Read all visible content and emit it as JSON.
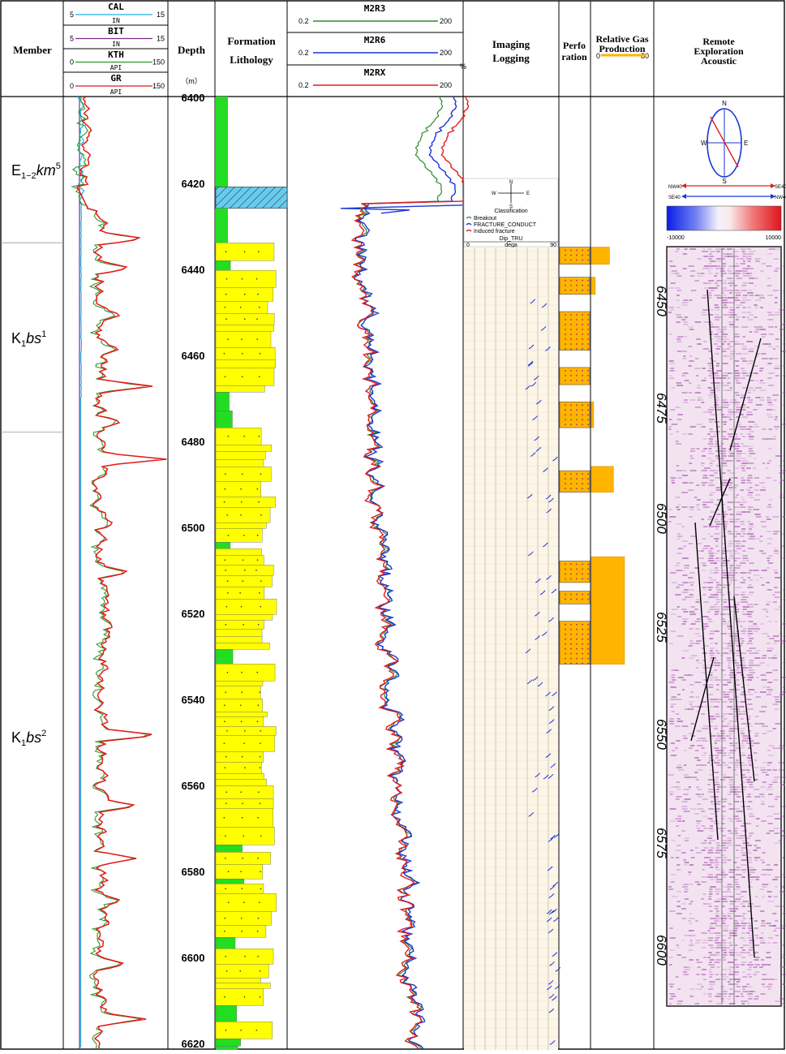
{
  "headers": {
    "member": "Member",
    "depth": "Depth",
    "depth_unit": "（m）",
    "formation_lithology_1": "Formation",
    "formation_lithology_2": "Lithology",
    "imaging_1": "Imaging",
    "imaging_2": "Logging",
    "perforation_1": "Perfo",
    "perforation_2": "ration",
    "gas_1": "Relative Gas",
    "gas_2": "Production",
    "gas_min": "0",
    "gas_max": "80",
    "remote_1": "Remote",
    "remote_2": "Exploration",
    "remote_3": "Acoustic",
    "resistivity_unit_symbol": "%"
  },
  "log_curves": [
    {
      "name": "CAL",
      "unit": "IN",
      "min": "5",
      "max": "15",
      "color": "#18b4e6"
    },
    {
      "name": "BIT",
      "unit": "IN",
      "min": "5",
      "max": "15",
      "color": "#7b2b8f"
    },
    {
      "name": "KTH",
      "unit": "API",
      "min": "0",
      "max": "150",
      "color": "#2a9a2a"
    },
    {
      "name": "GR",
      "unit": "API",
      "min": "0",
      "max": "150",
      "color": "#e41b1b"
    }
  ],
  "resistivity_curves": [
    {
      "name": "M2R3",
      "min": "0.2",
      "max": "200",
      "color": "#2a8a2a"
    },
    {
      "name": "M2R6",
      "min": "0.2",
      "max": "200",
      "color": "#1a35d6"
    },
    {
      "name": "M2RX",
      "min": "0.2",
      "max": "200",
      "color": "#e41b1b"
    }
  ],
  "members": [
    {
      "base": "E",
      "sub": "1−2",
      "ital": "km",
      "sup": "5",
      "top": 6400,
      "bottom": 6434
    },
    {
      "base": "K",
      "sub": "1",
      "ital": "bs",
      "sup": "1",
      "top": 6434,
      "bottom": 6478
    },
    {
      "base": "K",
      "sub": "1",
      "ital": "bs",
      "sup": "2",
      "top": 6478,
      "bottom": 6620
    }
  ],
  "depth_ticks": [
    "6400",
    "6420",
    "6440",
    "6460",
    "6480",
    "6500",
    "6520",
    "6540",
    "6560",
    "6580",
    "6600",
    "6620"
  ],
  "imaging_legend": {
    "compass_n": "N",
    "compass_s": "S",
    "compass_e": "E",
    "compass_w": "W",
    "classification": "Classification",
    "items": [
      {
        "label": "Breakout",
        "color": "#2a9a2a"
      },
      {
        "label": "FRACTURE_CONDUCT",
        "color": "#1a35d6"
      },
      {
        "label": "Induced fracture",
        "color": "#e41b1b"
      }
    ],
    "dip_label": "Dip_TRU",
    "dip_min": "0",
    "dip_unit": "dega",
    "dip_max": "90"
  },
  "acoustic": {
    "compass_n": "N",
    "compass_s": "S",
    "compass_e": "E",
    "compass_w": "W",
    "arrow_labels": [
      "NW40",
      "SE40",
      "SE40",
      "NW40"
    ],
    "scale_min": "-10000",
    "scale_max": "10000",
    "depth_labels": [
      "6450",
      "6475",
      "6500",
      "6525",
      "6550",
      "6575",
      "6600"
    ]
  },
  "colors": {
    "sand": "#ffff00",
    "mud": "#22dd22",
    "limestone": "#66ccee",
    "perforation": "#ffb400",
    "gas": "#ffb400",
    "image_bg": "#fdf5e6"
  },
  "chart_data": {
    "type": "line",
    "x_axis": "Depth (m)",
    "depth_range": [
      6400,
      6620
    ],
    "lithology": [
      {
        "top": 6400,
        "bottom": 6421,
        "type": "mudstone"
      },
      {
        "top": 6421,
        "bottom": 6426,
        "type": "limestone"
      },
      {
        "top": 6426,
        "bottom": 6434,
        "type": "mudstone"
      },
      {
        "top": 6434,
        "bottom": 6620,
        "type": "sandstone with thin mudstone interbeds"
      }
    ],
    "perforations": [
      [
        6435,
        6439
      ],
      [
        6442,
        6446
      ],
      [
        6450,
        6459
      ],
      [
        6463,
        6467
      ],
      [
        6471,
        6477
      ],
      [
        6487,
        6492
      ],
      [
        6508,
        6513
      ],
      [
        6515,
        6518
      ],
      [
        6522,
        6532
      ]
    ],
    "relative_gas_production": [
      {
        "top": 6435,
        "bottom": 6439,
        "value": 23
      },
      {
        "top": 6442,
        "bottom": 6446,
        "value": 5
      },
      {
        "top": 6471,
        "bottom": 6477,
        "value": 3
      },
      {
        "top": 6486,
        "bottom": 6492,
        "value": 28
      },
      {
        "top": 6507,
        "bottom": 6532,
        "value": 42
      }
    ],
    "gr_peaks": [
      {
        "depth": 6433,
        "value": 110
      },
      {
        "depth": 6441,
        "value": 118
      },
      {
        "depth": 6467,
        "value": 145
      },
      {
        "depth": 6484,
        "value": 160
      },
      {
        "depth": 6549,
        "value": 135
      },
      {
        "depth": 6605,
        "value": 132
      }
    ],
    "resistivity_range_ohmm": [
      0.2,
      200
    ],
    "dip_range_deg": [
      0,
      90
    ]
  }
}
